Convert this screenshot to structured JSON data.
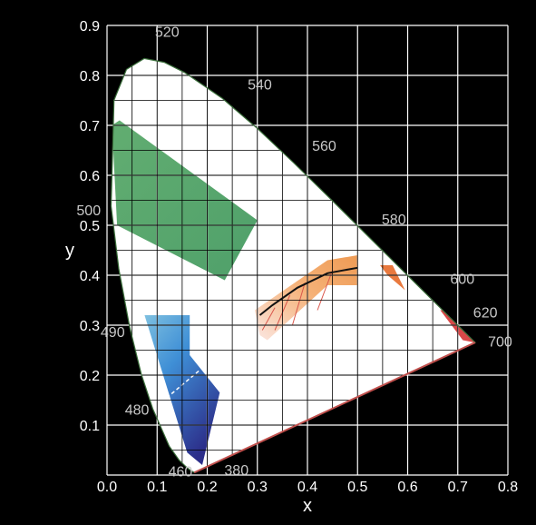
{
  "chart_data": {
    "type": "diagram",
    "xlabel": "x",
    "ylabel": "y",
    "xlim": [
      0.0,
      0.8
    ],
    "ylim": [
      0.0,
      0.9
    ],
    "x_ticks": [
      "0.0",
      "0.1",
      "0.2",
      "0.3",
      "0.4",
      "0.5",
      "0.6",
      "0.7",
      "0.8"
    ],
    "y_ticks": [
      "0.1",
      "0.2",
      "0.3",
      "0.4",
      "0.5",
      "0.6",
      "0.7",
      "0.8",
      "0.9"
    ],
    "grid": true,
    "grid_step": 0.05,
    "locus": [
      [
        0.1741,
        0.005
      ],
      [
        0.1644,
        0.0109
      ],
      [
        0.1566,
        0.0177
      ],
      [
        0.144,
        0.0297
      ],
      [
        0.1241,
        0.0578
      ],
      [
        0.0913,
        0.1327
      ],
      [
        0.0687,
        0.2007
      ],
      [
        0.0454,
        0.295
      ],
      [
        0.0235,
        0.4127
      ],
      [
        0.0082,
        0.5384
      ],
      [
        0.0139,
        0.7502
      ],
      [
        0.0389,
        0.812
      ],
      [
        0.0743,
        0.8338
      ],
      [
        0.1142,
        0.8262
      ],
      [
        0.1547,
        0.8059
      ],
      [
        0.2296,
        0.7543
      ],
      [
        0.3016,
        0.6923
      ],
      [
        0.3731,
        0.6245
      ],
      [
        0.4441,
        0.5547
      ],
      [
        0.5125,
        0.4866
      ],
      [
        0.5752,
        0.4242
      ],
      [
        0.627,
        0.3725
      ],
      [
        0.6658,
        0.334
      ],
      [
        0.6915,
        0.3083
      ],
      [
        0.7347,
        0.2653
      ]
    ],
    "wavelength_labels": [
      {
        "text": "380",
        "x": 0.18,
        "y": 0.0
      },
      {
        "text": "460",
        "x": 0.144,
        "y": 0.03
      },
      {
        "text": "480",
        "x": 0.09,
        "y": 0.13
      },
      {
        "text": "490",
        "x": 0.045,
        "y": 0.295
      },
      {
        "text": "500",
        "x": 0.008,
        "y": 0.538
      },
      {
        "text": "520",
        "x": 0.074,
        "y": 0.834
      },
      {
        "text": "540",
        "x": 0.23,
        "y": 0.754
      },
      {
        "text": "560",
        "x": 0.373,
        "y": 0.624
      },
      {
        "text": "580",
        "x": 0.512,
        "y": 0.487
      },
      {
        "text": "600",
        "x": 0.627,
        "y": 0.372
      },
      {
        "text": "620",
        "x": 0.691,
        "y": 0.308
      },
      {
        "text": "700",
        "x": 0.735,
        "y": 0.265
      }
    ],
    "regions": [
      {
        "color": "#5aa86a",
        "points": [
          [
            0.01,
            0.7
          ],
          [
            0.025,
            0.71
          ],
          [
            0.3,
            0.51
          ],
          [
            0.235,
            0.39
          ],
          [
            0.02,
            0.5
          ]
        ]
      },
      {
        "color": "#4b8ec8",
        "points": [
          [
            0.075,
            0.32
          ],
          [
            0.165,
            0.32
          ],
          [
            0.165,
            0.24
          ],
          [
            0.225,
            0.165
          ],
          [
            0.19,
            0.02
          ],
          [
            0.16,
            0.045
          ]
        ]
      },
      {
        "color": "#f1a061",
        "points": [
          [
            0.305,
            0.28
          ],
          [
            0.295,
            0.33
          ],
          [
            0.44,
            0.43
          ],
          [
            0.5,
            0.44
          ],
          [
            0.5,
            0.38
          ],
          [
            0.44,
            0.38
          ],
          [
            0.32,
            0.27
          ]
        ]
      },
      {
        "color": "#e9793e",
        "points": [
          [
            0.545,
            0.42
          ],
          [
            0.56,
            0.4
          ],
          [
            0.595,
            0.37
          ],
          [
            0.57,
            0.42
          ]
        ]
      },
      {
        "color": "#d94848",
        "points": [
          [
            0.665,
            0.33
          ],
          [
            0.69,
            0.33
          ],
          [
            0.735,
            0.265
          ],
          [
            0.71,
            0.27
          ]
        ]
      }
    ],
    "planckian_locus": [
      [
        0.305,
        0.32
      ],
      [
        0.33,
        0.34
      ],
      [
        0.38,
        0.375
      ],
      [
        0.44,
        0.404
      ],
      [
        0.5,
        0.415
      ]
    ]
  }
}
